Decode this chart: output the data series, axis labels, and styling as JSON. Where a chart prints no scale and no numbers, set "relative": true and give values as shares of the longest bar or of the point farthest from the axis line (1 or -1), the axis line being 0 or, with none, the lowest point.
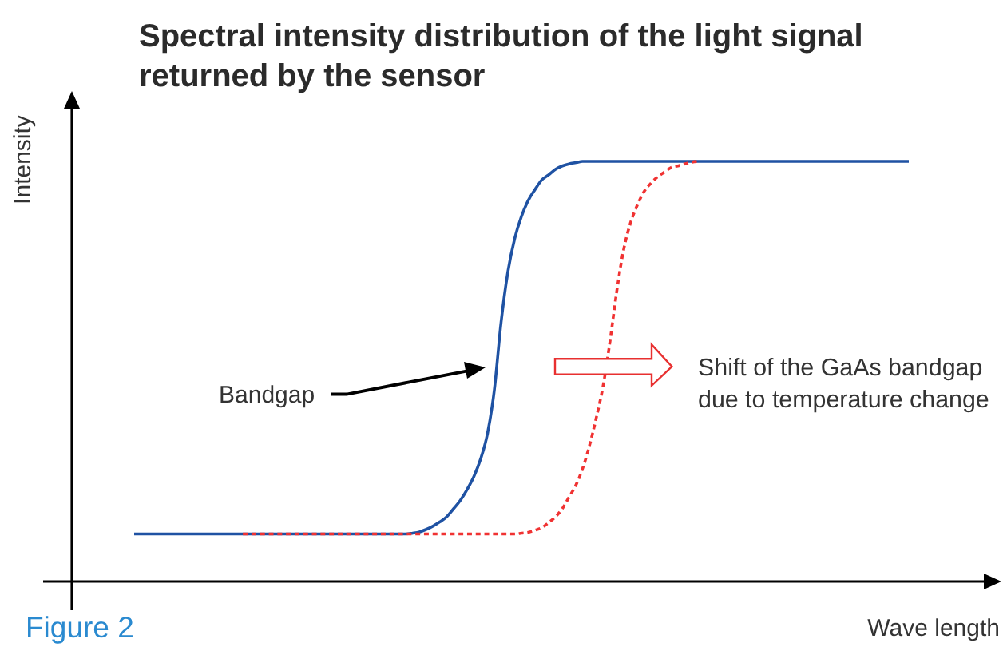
{
  "chart_data": {
    "type": "line",
    "title": "Spectral intensity distribution of the light signal\nreturned by the sensor",
    "xlabel": "Wave length",
    "ylabel": "Intensity",
    "relative": true,
    "categories": [
      null,
      null,
      null,
      null,
      null,
      null,
      null,
      null,
      null,
      null,
      null,
      null,
      null,
      null,
      null,
      null,
      null,
      null,
      null,
      null,
      null,
      null,
      null,
      null,
      null,
      null,
      null,
      null,
      null,
      null,
      null,
      null,
      null,
      null,
      null,
      null,
      null,
      null,
      null,
      null,
      null,
      null,
      null,
      null,
      null,
      null,
      null,
      null,
      null,
      null,
      null,
      null,
      null,
      null,
      null,
      null,
      null,
      null,
      null,
      null,
      null,
      null,
      null,
      null,
      null,
      null,
      null,
      null,
      null,
      null,
      null,
      null,
      null,
      null,
      null,
      null,
      null,
      null,
      null,
      null,
      null,
      null,
      null,
      null,
      null,
      null,
      null,
      null,
      null,
      null,
      null,
      null,
      null,
      null,
      null,
      null,
      null,
      null,
      null,
      null,
      null,
      null,
      null,
      null,
      null,
      null,
      null,
      null,
      null,
      null,
      null,
      null,
      null,
      null,
      null
    ],
    "series": [
      {
        "color": "#1f52a3",
        "line_style": "solid",
        "values": [
          0.113,
          0.113,
          0.113,
          0.113,
          0.113,
          0.113,
          0.113,
          0.113,
          0.113,
          0.113,
          0.113,
          0.113,
          0.113,
          0.113,
          0.113,
          0.113,
          0.113,
          0.113,
          0.113,
          0.113,
          0.113,
          0.113,
          0.113,
          0.113,
          0.113,
          0.113,
          0.113,
          0.113,
          0.113,
          0.113,
          0.113,
          0.113,
          0.113,
          0.113,
          0.113,
          0.113,
          0.113,
          0.113,
          0.113,
          0.113,
          0.113,
          0.115,
          0.118,
          0.124,
          0.132,
          0.142,
          0.154,
          0.173,
          0.193,
          0.219,
          0.25,
          0.292,
          0.352,
          0.455,
          0.617,
          0.737,
          0.816,
          0.869,
          0.907,
          0.933,
          0.956,
          0.968,
          0.981,
          0.989,
          0.994,
          0.997,
          1,
          1,
          1,
          1,
          1,
          1,
          1,
          1,
          1,
          1,
          1,
          1,
          1,
          1,
          1,
          1,
          1,
          1,
          1,
          1,
          1,
          1,
          1,
          1,
          1,
          1,
          1,
          1,
          1,
          1,
          1,
          1,
          1,
          1,
          1,
          1,
          1,
          1,
          1,
          1,
          1,
          1,
          1,
          1,
          1,
          1,
          1,
          1,
          1
        ]
      },
      {
        "color": "#f03232",
        "line_style": "dotted",
        "values": [
          null,
          null,
          null,
          null,
          null,
          null,
          null,
          null,
          null,
          null,
          null,
          null,
          null,
          null,
          null,
          null,
          0.113,
          0.113,
          0.113,
          0.113,
          0.113,
          0.113,
          0.113,
          0.113,
          0.113,
          0.113,
          0.113,
          0.113,
          0.113,
          0.113,
          0.113,
          0.113,
          0.113,
          0.113,
          0.113,
          0.113,
          0.113,
          0.113,
          0.113,
          0.113,
          0.113,
          0.113,
          0.113,
          0.113,
          0.113,
          0.113,
          0.113,
          0.113,
          0.113,
          0.113,
          0.113,
          0.113,
          0.113,
          0.113,
          0.113,
          0.113,
          0.113,
          0.115,
          0.117,
          0.122,
          0.128,
          0.14,
          0.154,
          0.173,
          0.201,
          0.229,
          0.269,
          0.323,
          0.389,
          0.464,
          0.568,
          0.688,
          0.787,
          0.851,
          0.894,
          0.927,
          0.947,
          0.963,
          0.974,
          0.985,
          0.989,
          0.994,
          0.998,
          1,
          null,
          null,
          null,
          null,
          null,
          null,
          null,
          null,
          null,
          null,
          null,
          null,
          null,
          null,
          null,
          null,
          null,
          null,
          null,
          null,
          null,
          null,
          null,
          null,
          null,
          null,
          null,
          null,
          null,
          null,
          null
        ]
      }
    ],
    "annotations": [
      "Bandgap",
      "Shift of the GaAs bandgap\ndue to temperature change",
      "Figure 2"
    ]
  }
}
